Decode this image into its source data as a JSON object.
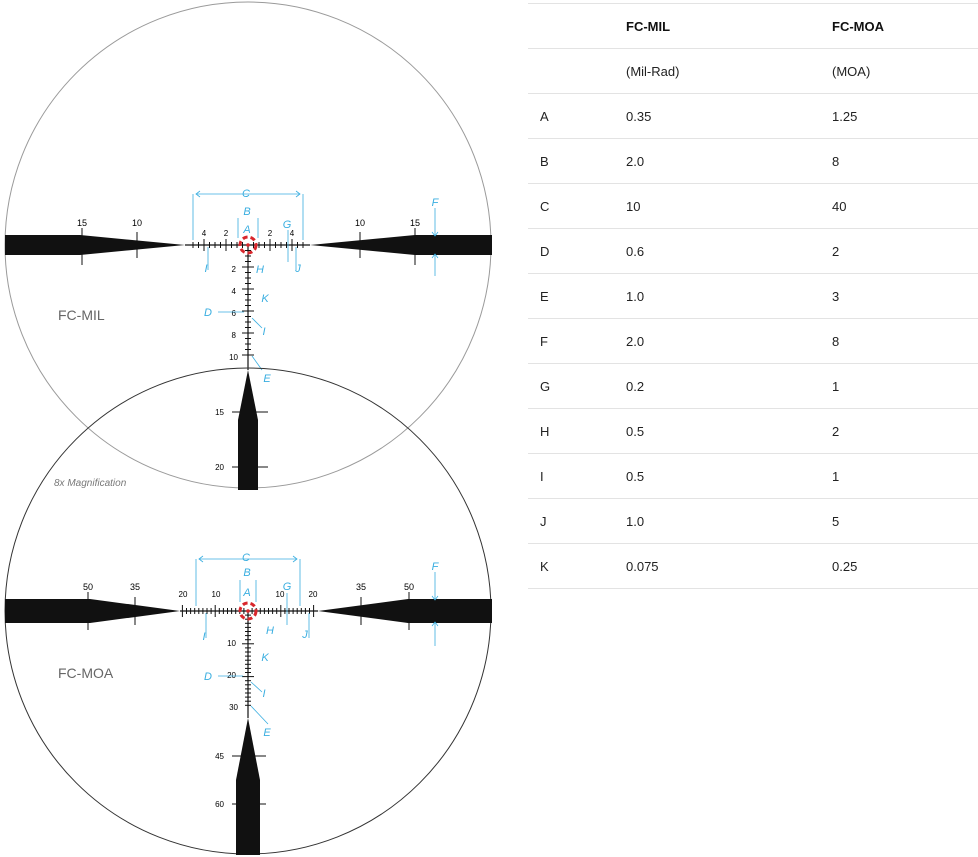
{
  "reticles": [
    {
      "name": "FC-MIL",
      "h_ticks_left": [
        "15",
        "10"
      ],
      "h_ticks_right": [
        "10",
        "15"
      ],
      "center_ticks_left": [
        "4",
        "2"
      ],
      "center_ticks_right": [
        "2",
        "4"
      ],
      "v_ticks": [
        "2",
        "4",
        "6",
        "8",
        "10"
      ],
      "post_ticks": [
        "15",
        "20"
      ]
    },
    {
      "name": "FC-MOA",
      "h_ticks_left": [
        "50",
        "35"
      ],
      "h_ticks_right": [
        "35",
        "50"
      ],
      "center_ticks_left": [
        "20",
        "10"
      ],
      "center_ticks_right": [
        "10",
        "20"
      ],
      "v_ticks": [
        "10",
        "20",
        "30"
      ],
      "post_ticks": [
        "45",
        "60"
      ]
    }
  ],
  "magnification_note": "8x Magnification",
  "callout_letters": [
    "A",
    "B",
    "C",
    "D",
    "E",
    "F",
    "G",
    "H",
    "I",
    "J",
    "K"
  ],
  "colors": {
    "callout": "#3aaee0",
    "center_dot": "#d8262c",
    "reticle": "#111111",
    "circle": "#9a9a9a"
  },
  "table": {
    "headers": [
      "",
      "FC-MIL",
      "FC-MOA"
    ],
    "units": [
      "",
      "(Mil-Rad)",
      "(MOA)"
    ],
    "rows": [
      [
        "A",
        "0.35",
        "1.25"
      ],
      [
        "B",
        "2.0",
        "8"
      ],
      [
        "C",
        "10",
        "40"
      ],
      [
        "D",
        "0.6",
        "2"
      ],
      [
        "E",
        "1.0",
        "3"
      ],
      [
        "F",
        "2.0",
        "8"
      ],
      [
        "G",
        "0.2",
        "1"
      ],
      [
        "H",
        "0.5",
        "2"
      ],
      [
        "I",
        "0.5",
        "1"
      ],
      [
        "J",
        "1.0",
        "5"
      ],
      [
        "K",
        "0.075",
        "0.25"
      ]
    ]
  }
}
